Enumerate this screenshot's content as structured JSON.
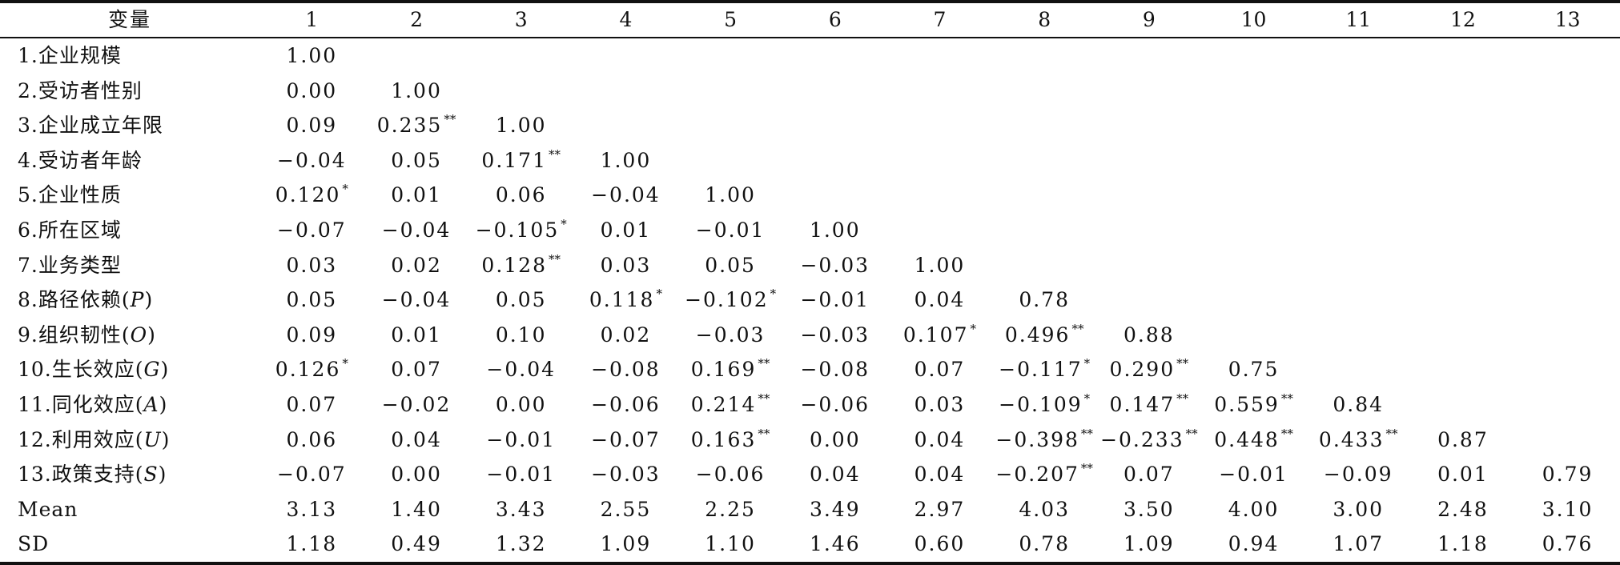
{
  "table": {
    "var_header": "变量",
    "columns": [
      "1",
      "2",
      "3",
      "4",
      "5",
      "6",
      "7",
      "8",
      "9",
      "10",
      "11",
      "12",
      "13"
    ],
    "rows": [
      {
        "name": "1.企业规模",
        "cells": [
          {
            "v": "1.00",
            "s": ""
          },
          {
            "v": "",
            "s": ""
          },
          {
            "v": "",
            "s": ""
          },
          {
            "v": "",
            "s": ""
          },
          {
            "v": "",
            "s": ""
          },
          {
            "v": "",
            "s": ""
          },
          {
            "v": "",
            "s": ""
          },
          {
            "v": "",
            "s": ""
          },
          {
            "v": "",
            "s": ""
          },
          {
            "v": "",
            "s": ""
          },
          {
            "v": "",
            "s": ""
          },
          {
            "v": "",
            "s": ""
          },
          {
            "v": "",
            "s": ""
          }
        ]
      },
      {
        "name": "2.受访者性别",
        "cells": [
          {
            "v": "0.00",
            "s": ""
          },
          {
            "v": "1.00",
            "s": ""
          },
          {
            "v": "",
            "s": ""
          },
          {
            "v": "",
            "s": ""
          },
          {
            "v": "",
            "s": ""
          },
          {
            "v": "",
            "s": ""
          },
          {
            "v": "",
            "s": ""
          },
          {
            "v": "",
            "s": ""
          },
          {
            "v": "",
            "s": ""
          },
          {
            "v": "",
            "s": ""
          },
          {
            "v": "",
            "s": ""
          },
          {
            "v": "",
            "s": ""
          },
          {
            "v": "",
            "s": ""
          }
        ]
      },
      {
        "name": "3.企业成立年限",
        "cells": [
          {
            "v": "0.09",
            "s": ""
          },
          {
            "v": "0.235",
            "s": "**"
          },
          {
            "v": "1.00",
            "s": ""
          },
          {
            "v": "",
            "s": ""
          },
          {
            "v": "",
            "s": ""
          },
          {
            "v": "",
            "s": ""
          },
          {
            "v": "",
            "s": ""
          },
          {
            "v": "",
            "s": ""
          },
          {
            "v": "",
            "s": ""
          },
          {
            "v": "",
            "s": ""
          },
          {
            "v": "",
            "s": ""
          },
          {
            "v": "",
            "s": ""
          },
          {
            "v": "",
            "s": ""
          }
        ]
      },
      {
        "name": "4.受访者年龄",
        "cells": [
          {
            "v": "−0.04",
            "s": ""
          },
          {
            "v": "0.05",
            "s": ""
          },
          {
            "v": "0.171",
            "s": "**"
          },
          {
            "v": "1.00",
            "s": ""
          },
          {
            "v": "",
            "s": ""
          },
          {
            "v": "",
            "s": ""
          },
          {
            "v": "",
            "s": ""
          },
          {
            "v": "",
            "s": ""
          },
          {
            "v": "",
            "s": ""
          },
          {
            "v": "",
            "s": ""
          },
          {
            "v": "",
            "s": ""
          },
          {
            "v": "",
            "s": ""
          },
          {
            "v": "",
            "s": ""
          }
        ]
      },
      {
        "name": "5.企业性质",
        "cells": [
          {
            "v": "0.120",
            "s": "*"
          },
          {
            "v": "0.01",
            "s": ""
          },
          {
            "v": "0.06",
            "s": ""
          },
          {
            "v": "−0.04",
            "s": ""
          },
          {
            "v": "1.00",
            "s": ""
          },
          {
            "v": "",
            "s": ""
          },
          {
            "v": "",
            "s": ""
          },
          {
            "v": "",
            "s": ""
          },
          {
            "v": "",
            "s": ""
          },
          {
            "v": "",
            "s": ""
          },
          {
            "v": "",
            "s": ""
          },
          {
            "v": "",
            "s": ""
          },
          {
            "v": "",
            "s": ""
          }
        ]
      },
      {
        "name": "6.所在区域",
        "cells": [
          {
            "v": "−0.07",
            "s": ""
          },
          {
            "v": "−0.04",
            "s": ""
          },
          {
            "v": "−0.105",
            "s": "*"
          },
          {
            "v": "0.01",
            "s": ""
          },
          {
            "v": "−0.01",
            "s": ""
          },
          {
            "v": "1.00",
            "s": ""
          },
          {
            "v": "",
            "s": ""
          },
          {
            "v": "",
            "s": ""
          },
          {
            "v": "",
            "s": ""
          },
          {
            "v": "",
            "s": ""
          },
          {
            "v": "",
            "s": ""
          },
          {
            "v": "",
            "s": ""
          },
          {
            "v": "",
            "s": ""
          }
        ]
      },
      {
        "name": "7.业务类型",
        "cells": [
          {
            "v": "0.03",
            "s": ""
          },
          {
            "v": "0.02",
            "s": ""
          },
          {
            "v": "0.128",
            "s": "**"
          },
          {
            "v": "0.03",
            "s": ""
          },
          {
            "v": "0.05",
            "s": ""
          },
          {
            "v": "−0.03",
            "s": ""
          },
          {
            "v": "1.00",
            "s": ""
          },
          {
            "v": "",
            "s": ""
          },
          {
            "v": "",
            "s": ""
          },
          {
            "v": "",
            "s": ""
          },
          {
            "v": "",
            "s": ""
          },
          {
            "v": "",
            "s": ""
          },
          {
            "v": "",
            "s": ""
          }
        ]
      },
      {
        "name": "8.路径依赖(",
        "sym": "P",
        "close": ")",
        "cells": [
          {
            "v": "0.05",
            "s": ""
          },
          {
            "v": "−0.04",
            "s": ""
          },
          {
            "v": "0.05",
            "s": ""
          },
          {
            "v": "0.118",
            "s": "*"
          },
          {
            "v": "−0.102",
            "s": "*"
          },
          {
            "v": "−0.01",
            "s": ""
          },
          {
            "v": "0.04",
            "s": ""
          },
          {
            "v": "0.78",
            "s": ""
          },
          {
            "v": "",
            "s": ""
          },
          {
            "v": "",
            "s": ""
          },
          {
            "v": "",
            "s": ""
          },
          {
            "v": "",
            "s": ""
          },
          {
            "v": "",
            "s": ""
          }
        ]
      },
      {
        "name": "9.组织韧性(",
        "sym": "O",
        "close": ")",
        "cells": [
          {
            "v": "0.09",
            "s": ""
          },
          {
            "v": "0.01",
            "s": ""
          },
          {
            "v": "0.10",
            "s": ""
          },
          {
            "v": "0.02",
            "s": ""
          },
          {
            "v": "−0.03",
            "s": ""
          },
          {
            "v": "−0.03",
            "s": ""
          },
          {
            "v": "0.107",
            "s": "*"
          },
          {
            "v": "0.496",
            "s": "**"
          },
          {
            "v": "0.88",
            "s": ""
          },
          {
            "v": "",
            "s": ""
          },
          {
            "v": "",
            "s": ""
          },
          {
            "v": "",
            "s": ""
          },
          {
            "v": "",
            "s": ""
          }
        ]
      },
      {
        "name": "10.生长效应(",
        "sym": "G",
        "close": ")",
        "cells": [
          {
            "v": "0.126",
            "s": "*"
          },
          {
            "v": "0.07",
            "s": ""
          },
          {
            "v": "−0.04",
            "s": ""
          },
          {
            "v": "−0.08",
            "s": ""
          },
          {
            "v": "0.169",
            "s": "**"
          },
          {
            "v": "−0.08",
            "s": ""
          },
          {
            "v": "0.07",
            "s": ""
          },
          {
            "v": "−0.117",
            "s": "*"
          },
          {
            "v": "0.290",
            "s": "**"
          },
          {
            "v": "0.75",
            "s": ""
          },
          {
            "v": "",
            "s": ""
          },
          {
            "v": "",
            "s": ""
          },
          {
            "v": "",
            "s": ""
          }
        ]
      },
      {
        "name": "11.同化效应(",
        "sym": "A",
        "close": ")",
        "cells": [
          {
            "v": "0.07",
            "s": ""
          },
          {
            "v": "−0.02",
            "s": ""
          },
          {
            "v": "0.00",
            "s": ""
          },
          {
            "v": "−0.06",
            "s": ""
          },
          {
            "v": "0.214",
            "s": "**"
          },
          {
            "v": "−0.06",
            "s": ""
          },
          {
            "v": "0.03",
            "s": ""
          },
          {
            "v": "−0.109",
            "s": "*"
          },
          {
            "v": "0.147",
            "s": "**"
          },
          {
            "v": "0.559",
            "s": "**"
          },
          {
            "v": "0.84",
            "s": ""
          },
          {
            "v": "",
            "s": ""
          },
          {
            "v": "",
            "s": ""
          }
        ]
      },
      {
        "name": "12.利用效应(",
        "sym": "U",
        "close": ")",
        "cells": [
          {
            "v": "0.06",
            "s": ""
          },
          {
            "v": "0.04",
            "s": ""
          },
          {
            "v": "−0.01",
            "s": ""
          },
          {
            "v": "−0.07",
            "s": ""
          },
          {
            "v": "0.163",
            "s": "**"
          },
          {
            "v": "0.00",
            "s": ""
          },
          {
            "v": "0.04",
            "s": ""
          },
          {
            "v": "−0.398",
            "s": "**"
          },
          {
            "v": "−0.233",
            "s": "**"
          },
          {
            "v": "0.448",
            "s": "**"
          },
          {
            "v": "0.433",
            "s": "**"
          },
          {
            "v": "0.87",
            "s": ""
          },
          {
            "v": "",
            "s": ""
          }
        ]
      },
      {
        "name": "13.政策支持(",
        "sym": "S",
        "close": ")",
        "cells": [
          {
            "v": "−0.07",
            "s": ""
          },
          {
            "v": "0.00",
            "s": ""
          },
          {
            "v": "−0.01",
            "s": ""
          },
          {
            "v": "−0.03",
            "s": ""
          },
          {
            "v": "−0.06",
            "s": ""
          },
          {
            "v": "0.04",
            "s": ""
          },
          {
            "v": "0.04",
            "s": ""
          },
          {
            "v": "−0.207",
            "s": "**"
          },
          {
            "v": "0.07",
            "s": ""
          },
          {
            "v": "−0.01",
            "s": ""
          },
          {
            "v": "−0.09",
            "s": ""
          },
          {
            "v": "0.01",
            "s": ""
          },
          {
            "v": "0.79",
            "s": ""
          }
        ]
      },
      {
        "name": "Mean",
        "cells": [
          {
            "v": "3.13",
            "s": ""
          },
          {
            "v": "1.40",
            "s": ""
          },
          {
            "v": "3.43",
            "s": ""
          },
          {
            "v": "2.55",
            "s": ""
          },
          {
            "v": "2.25",
            "s": ""
          },
          {
            "v": "3.49",
            "s": ""
          },
          {
            "v": "2.97",
            "s": ""
          },
          {
            "v": "4.03",
            "s": ""
          },
          {
            "v": "3.50",
            "s": ""
          },
          {
            "v": "4.00",
            "s": ""
          },
          {
            "v": "3.00",
            "s": ""
          },
          {
            "v": "2.48",
            "s": ""
          },
          {
            "v": "3.10",
            "s": ""
          }
        ]
      },
      {
        "name": "SD",
        "cells": [
          {
            "v": "1.18",
            "s": ""
          },
          {
            "v": "0.49",
            "s": ""
          },
          {
            "v": "1.32",
            "s": ""
          },
          {
            "v": "1.09",
            "s": ""
          },
          {
            "v": "1.10",
            "s": ""
          },
          {
            "v": "1.46",
            "s": ""
          },
          {
            "v": "0.60",
            "s": ""
          },
          {
            "v": "0.78",
            "s": ""
          },
          {
            "v": "1.09",
            "s": ""
          },
          {
            "v": "0.94",
            "s": ""
          },
          {
            "v": "1.07",
            "s": ""
          },
          {
            "v": "1.18",
            "s": ""
          },
          {
            "v": "0.76",
            "s": ""
          }
        ]
      }
    ]
  }
}
